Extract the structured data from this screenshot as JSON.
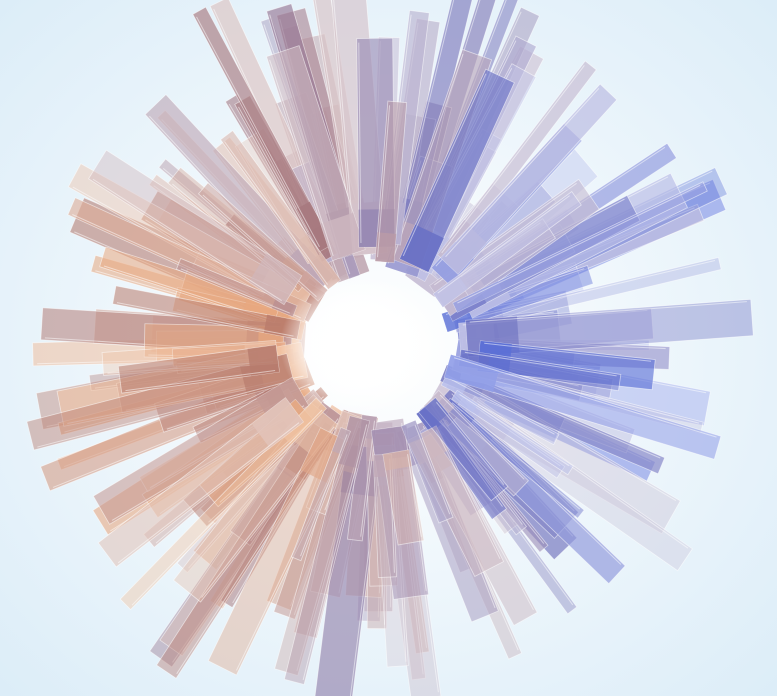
{
  "image": {
    "subject": "abstract-3d-render",
    "colors": {
      "background_center": "#ffffff",
      "background_edge": "#dcedf8",
      "warm_primary": "#f2c4a4",
      "warm_secondary": "#e7a880",
      "warm_deep": "#b97b6b",
      "cool_primary": "#b9c2f0",
      "cool_secondary": "#8f9ee8",
      "cool_deep": "#5b6fd6",
      "highlight": "#ffffff"
    }
  }
}
